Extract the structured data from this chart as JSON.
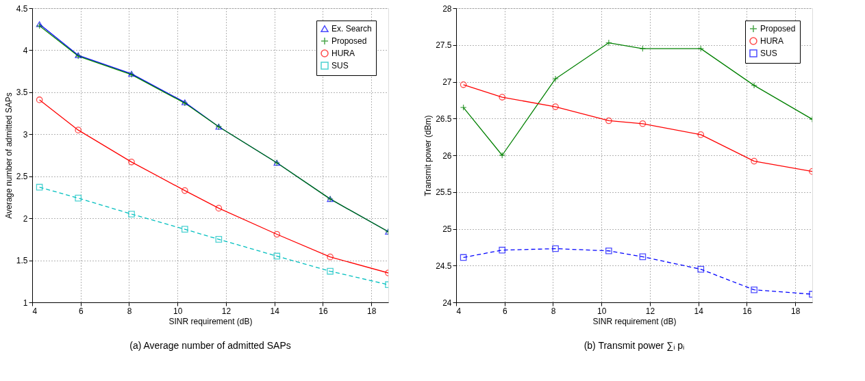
{
  "chart_data": [
    {
      "type": "line",
      "title": "(a) Average number of admitted SAPs",
      "xlabel": "SINR requirement (dB)",
      "ylabel": "Average number of admitted SAPs",
      "x": [
        4.3,
        5.9,
        8.1,
        10.3,
        11.7,
        14.1,
        16.3,
        18.7
      ],
      "series": [
        {
          "name": "Ex. Search",
          "color": "#0000ff",
          "marker": "triangle",
          "line_style": "solid",
          "values": [
            4.31,
            3.94,
            3.72,
            3.38,
            3.09,
            2.66,
            2.23,
            1.84
          ]
        },
        {
          "name": "Proposed",
          "color": "#008000",
          "marker": "cross",
          "line_style": "solid",
          "values": [
            4.29,
            3.93,
            3.71,
            3.37,
            3.09,
            2.66,
            2.23,
            1.84
          ]
        },
        {
          "name": "HURA",
          "color": "#ff0000",
          "marker": "circle",
          "line_style": "solid",
          "values": [
            3.41,
            3.05,
            2.67,
            2.33,
            2.12,
            1.81,
            1.54,
            1.35
          ]
        },
        {
          "name": "SUS",
          "color": "#00bfbf",
          "marker": "square",
          "line_style": "dashed",
          "values": [
            2.37,
            2.24,
            2.05,
            1.87,
            1.75,
            1.55,
            1.37,
            1.21
          ]
        }
      ],
      "xlim": [
        4,
        18.7
      ],
      "xticks": [
        4,
        6,
        8,
        10,
        12,
        14,
        16,
        18
      ],
      "ylim": [
        1,
        4.5
      ],
      "yticks": [
        1,
        1.5,
        2,
        2.5,
        3,
        3.5,
        4,
        4.5
      ],
      "grid": true,
      "legend": "top right"
    },
    {
      "type": "line",
      "title": "(b) Transmit power ∑ᵢ pᵢ",
      "xlabel": "SINR requirement (dB)",
      "ylabel": "Transmit power (dBm)",
      "x": [
        4.3,
        5.9,
        8.1,
        10.3,
        11.7,
        14.1,
        16.3,
        18.7
      ],
      "series": [
        {
          "name": "Proposed",
          "color": "#008000",
          "marker": "cross",
          "line_style": "solid",
          "values": [
            26.65,
            26.0,
            27.04,
            27.53,
            27.45,
            27.45,
            26.95,
            26.49
          ]
        },
        {
          "name": "HURA",
          "color": "#ff0000",
          "marker": "circle",
          "line_style": "solid",
          "values": [
            26.96,
            26.79,
            26.66,
            26.47,
            26.43,
            26.28,
            25.92,
            25.78
          ]
        },
        {
          "name": "SUS",
          "color": "#0000ff",
          "marker": "square",
          "line_style": "dashed",
          "values": [
            24.61,
            24.71,
            24.73,
            24.7,
            24.62,
            24.45,
            24.17,
            24.11
          ]
        }
      ],
      "xlim": [
        4,
        18.7
      ],
      "xticks": [
        4,
        6,
        8,
        10,
        12,
        14,
        16,
        18
      ],
      "ylim": [
        24,
        28
      ],
      "yticks": [
        24,
        24.5,
        25,
        25.5,
        26,
        26.5,
        27,
        27.5,
        28
      ],
      "grid": true,
      "legend": "top right"
    }
  ]
}
